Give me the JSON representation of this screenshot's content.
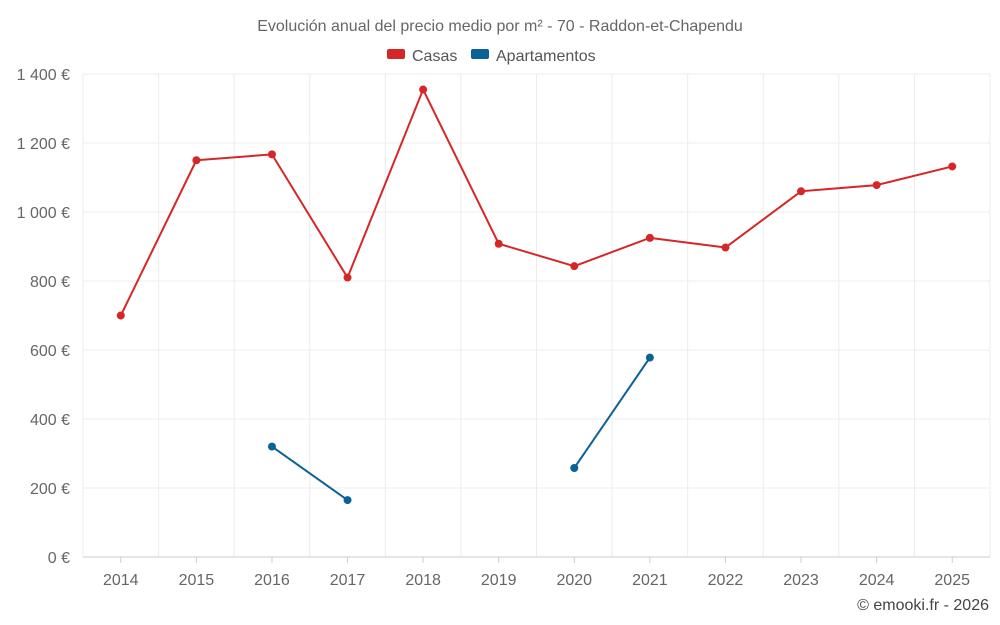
{
  "chart_data": {
    "type": "line",
    "title": "Evolución anual del precio medio por m² - 70 - Raddon-et-Chapendu",
    "categories": [
      "2014",
      "2015",
      "2016",
      "2017",
      "2018",
      "2019",
      "2020",
      "2021",
      "2022",
      "2023",
      "2024",
      "2025"
    ],
    "series": [
      {
        "name": "Casas",
        "color": "#d62728",
        "values": [
          700,
          1150,
          1167,
          810,
          1355,
          908,
          843,
          925,
          897,
          1060,
          1078,
          1132
        ]
      },
      {
        "name": "Apartamentos",
        "color": "#0a6296",
        "values": [
          null,
          null,
          320,
          165,
          null,
          null,
          258,
          578,
          null,
          null,
          null,
          null
        ]
      }
    ],
    "ylim": [
      0,
      1400
    ],
    "yticks": [
      0,
      200,
      400,
      600,
      800,
      1000,
      1200,
      1400
    ],
    "ytick_labels": [
      "0 €",
      "200 €",
      "400 €",
      "600 €",
      "800 €",
      "1 000 €",
      "1 200 €",
      "1 400 €"
    ],
    "xlabel": "",
    "ylabel": "",
    "grid": true,
    "legend_position": "top-center"
  },
  "credit": "© emooki.fr - 2026"
}
